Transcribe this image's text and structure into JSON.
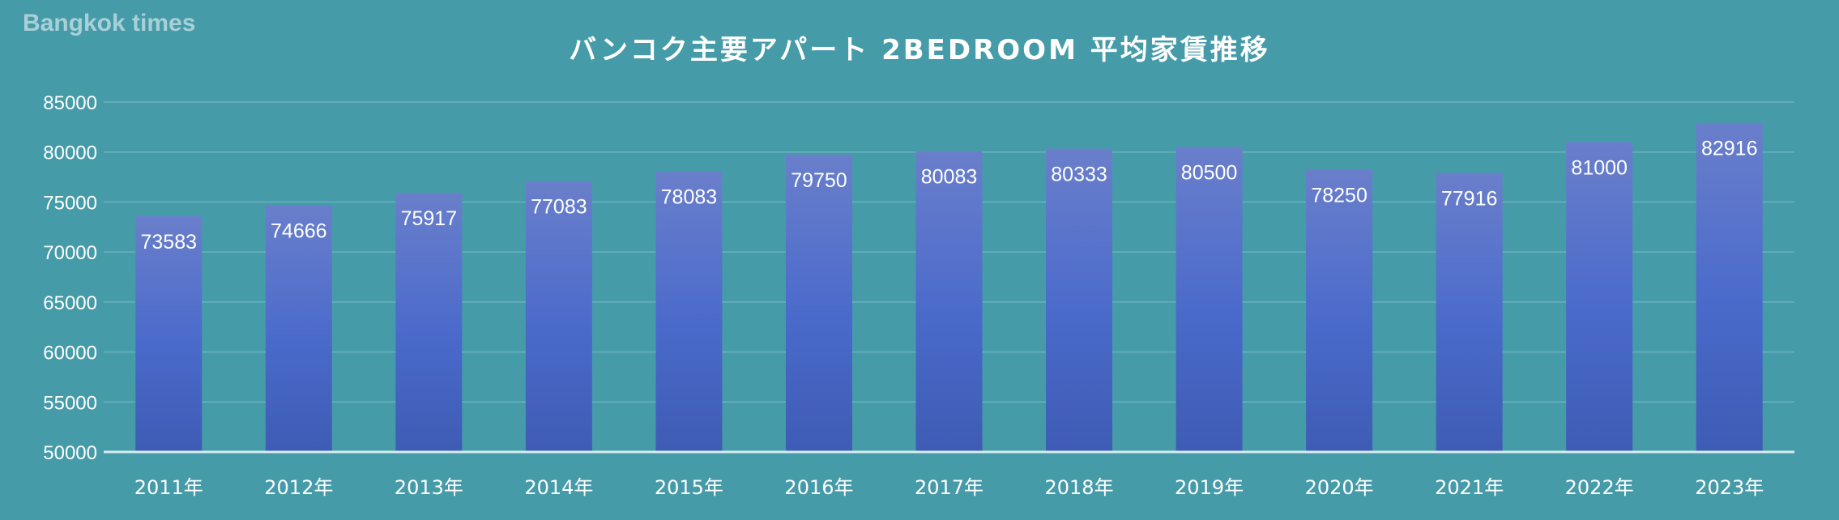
{
  "watermark": "Bangkok times",
  "chart_data": {
    "type": "bar",
    "title": "バンコク主要アパート 2BEDROOM 平均家賃推移",
    "categories": [
      "2011年",
      "2012年",
      "2013年",
      "2014年",
      "2015年",
      "2016年",
      "2017年",
      "2018年",
      "2019年",
      "2020年",
      "2021年",
      "2022年",
      "2023年"
    ],
    "values": [
      73583,
      74666,
      75917,
      77083,
      78083,
      79750,
      80083,
      80333,
      80500,
      78250,
      77916,
      81000,
      82916
    ],
    "data_labels": [
      "73583",
      "74666",
      "75917",
      "77083",
      "78083",
      "79750",
      "80083",
      "80333",
      "80500",
      "78250",
      "77916",
      "81000",
      "82916"
    ],
    "yticks": [
      "50000",
      "55000",
      "60000",
      "65000",
      "70000",
      "75000",
      "80000",
      "85000"
    ],
    "ylim": [
      50000,
      85000
    ],
    "grid": true,
    "xlabel": "",
    "ylabel": "",
    "colors": {
      "background": "#469ba9",
      "bar_top": "#6a7fcb",
      "bar_mid": "#4a6acb",
      "bar_bottom": "#3e5cb4",
      "grid": "#6ab3be",
      "axis": "#d8ecef"
    }
  }
}
